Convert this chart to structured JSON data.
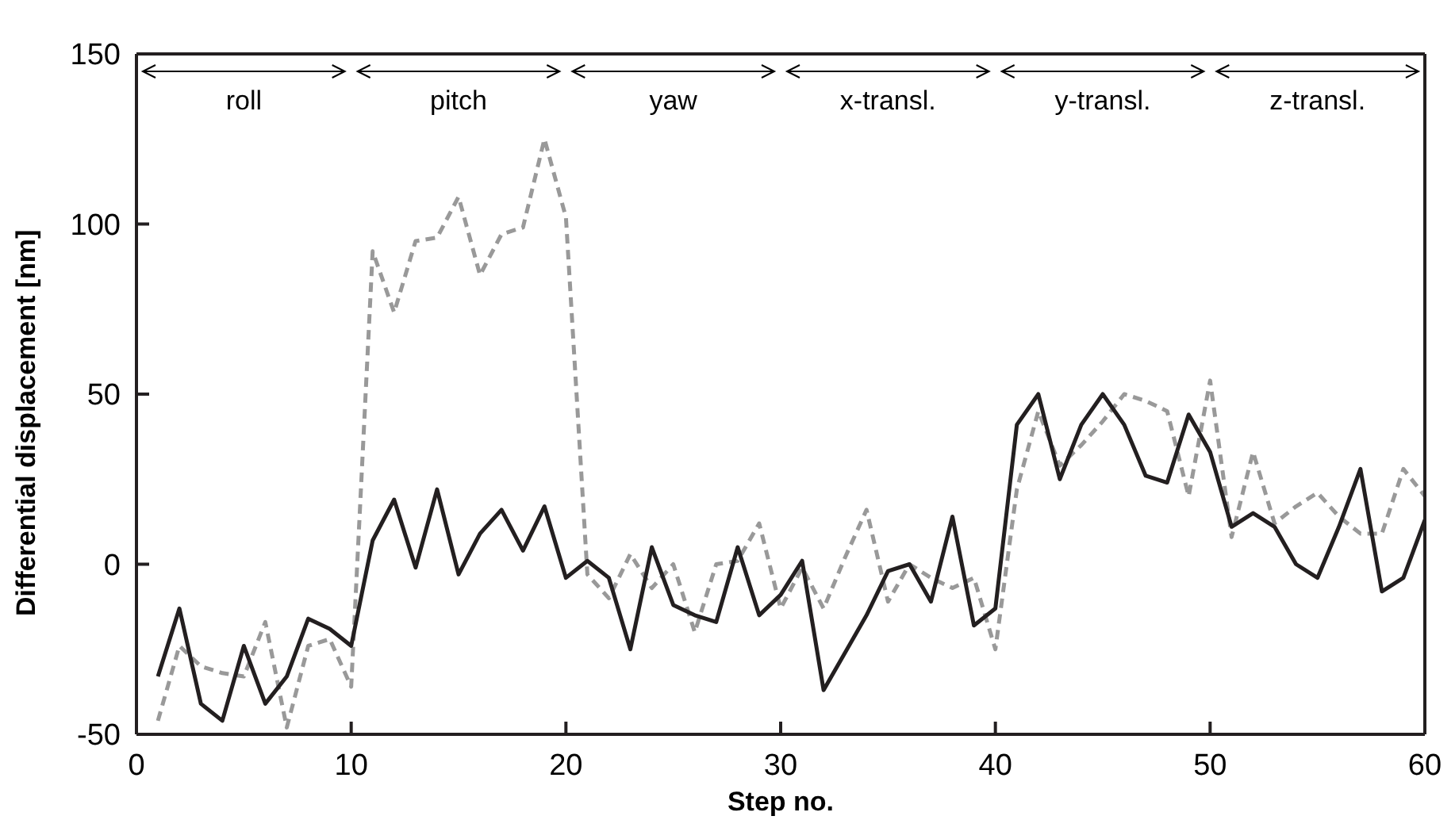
{
  "chart_data": {
    "type": "line",
    "xlabel": "Step no.",
    "ylabel": "Differential displacement [nm]",
    "x": [
      1,
      2,
      3,
      4,
      5,
      6,
      7,
      8,
      9,
      10,
      11,
      12,
      13,
      14,
      15,
      16,
      17,
      18,
      19,
      20,
      21,
      22,
      23,
      24,
      25,
      26,
      27,
      28,
      29,
      30,
      31,
      32,
      33,
      34,
      35,
      36,
      37,
      38,
      39,
      40,
      41,
      42,
      43,
      44,
      45,
      46,
      47,
      48,
      49,
      50,
      51,
      52,
      53,
      54,
      55,
      56,
      57,
      58,
      59,
      60
    ],
    "series": [
      {
        "color": "#999999",
        "line_style": "dashed",
        "values": [
          -46,
          -24,
          -30,
          -32,
          -33,
          -17,
          -48,
          -24,
          -22,
          -36,
          92,
          74,
          95,
          96,
          108,
          85,
          97,
          99,
          125,
          102,
          -3,
          -10,
          3,
          -7,
          0,
          -20,
          0,
          1,
          12,
          -13,
          -1,
          -13,
          2,
          16,
          -11,
          0,
          -4,
          -7,
          -4,
          -25,
          22,
          45,
          29,
          35,
          42,
          50,
          48,
          45,
          20,
          54,
          8,
          33,
          12,
          17,
          21,
          14,
          9,
          9,
          28,
          20
        ]
      },
      {
        "color": "#231f20",
        "line_style": "solid",
        "values": [
          -33,
          -13,
          -41,
          -46,
          -24,
          -41,
          -33,
          -16,
          -19,
          -24,
          7,
          19,
          -1,
          22,
          -3,
          9,
          16,
          4,
          17,
          -4,
          1,
          -4,
          -25,
          5,
          -12,
          -15,
          -17,
          5,
          -15,
          -9,
          1,
          -37,
          -26,
          -15,
          -2,
          0,
          -11,
          14,
          -18,
          -13,
          41,
          50,
          25,
          41,
          50,
          41,
          26,
          24,
          44,
          33,
          11,
          15,
          11,
          0,
          -4,
          11,
          28,
          -8,
          -4,
          13
        ]
      }
    ],
    "xlim": [
      0,
      60
    ],
    "xticks": [
      0,
      10,
      20,
      30,
      40,
      50,
      60
    ],
    "ylim": [
      -50,
      150
    ],
    "yticks": [
      -50,
      0,
      50,
      100,
      150
    ],
    "annotations": [
      "roll",
      "pitch",
      "yaw",
      "x-transl.",
      "y-transl.",
      "z-transl."
    ],
    "grid": false,
    "marker": "none"
  }
}
